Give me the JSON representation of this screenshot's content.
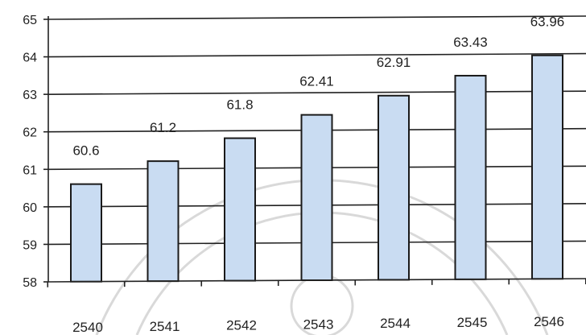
{
  "colors": {
    "bar_fill": "#c9dcf2",
    "bar_stroke": "#1a1a1a",
    "grid": "#222222",
    "watermark": "#d9d9d9"
  },
  "chart_data": {
    "type": "bar",
    "categories": [
      "2540",
      "2541",
      "2542",
      "2543",
      "2544",
      "2545",
      "2546"
    ],
    "values": [
      60.6,
      61.2,
      61.8,
      62.41,
      62.91,
      63.43,
      63.96
    ],
    "value_labels": [
      "60.6",
      "61.2",
      "61.8",
      "62.41",
      "62.91",
      "63.43",
      "63.96"
    ],
    "y_ticks": [
      "58",
      "59",
      "60",
      "61",
      "62",
      "63",
      "64",
      "65"
    ],
    "ylim": [
      58,
      65
    ],
    "title": "",
    "xlabel": "",
    "ylabel": "",
    "grid": true,
    "legend": "none"
  }
}
